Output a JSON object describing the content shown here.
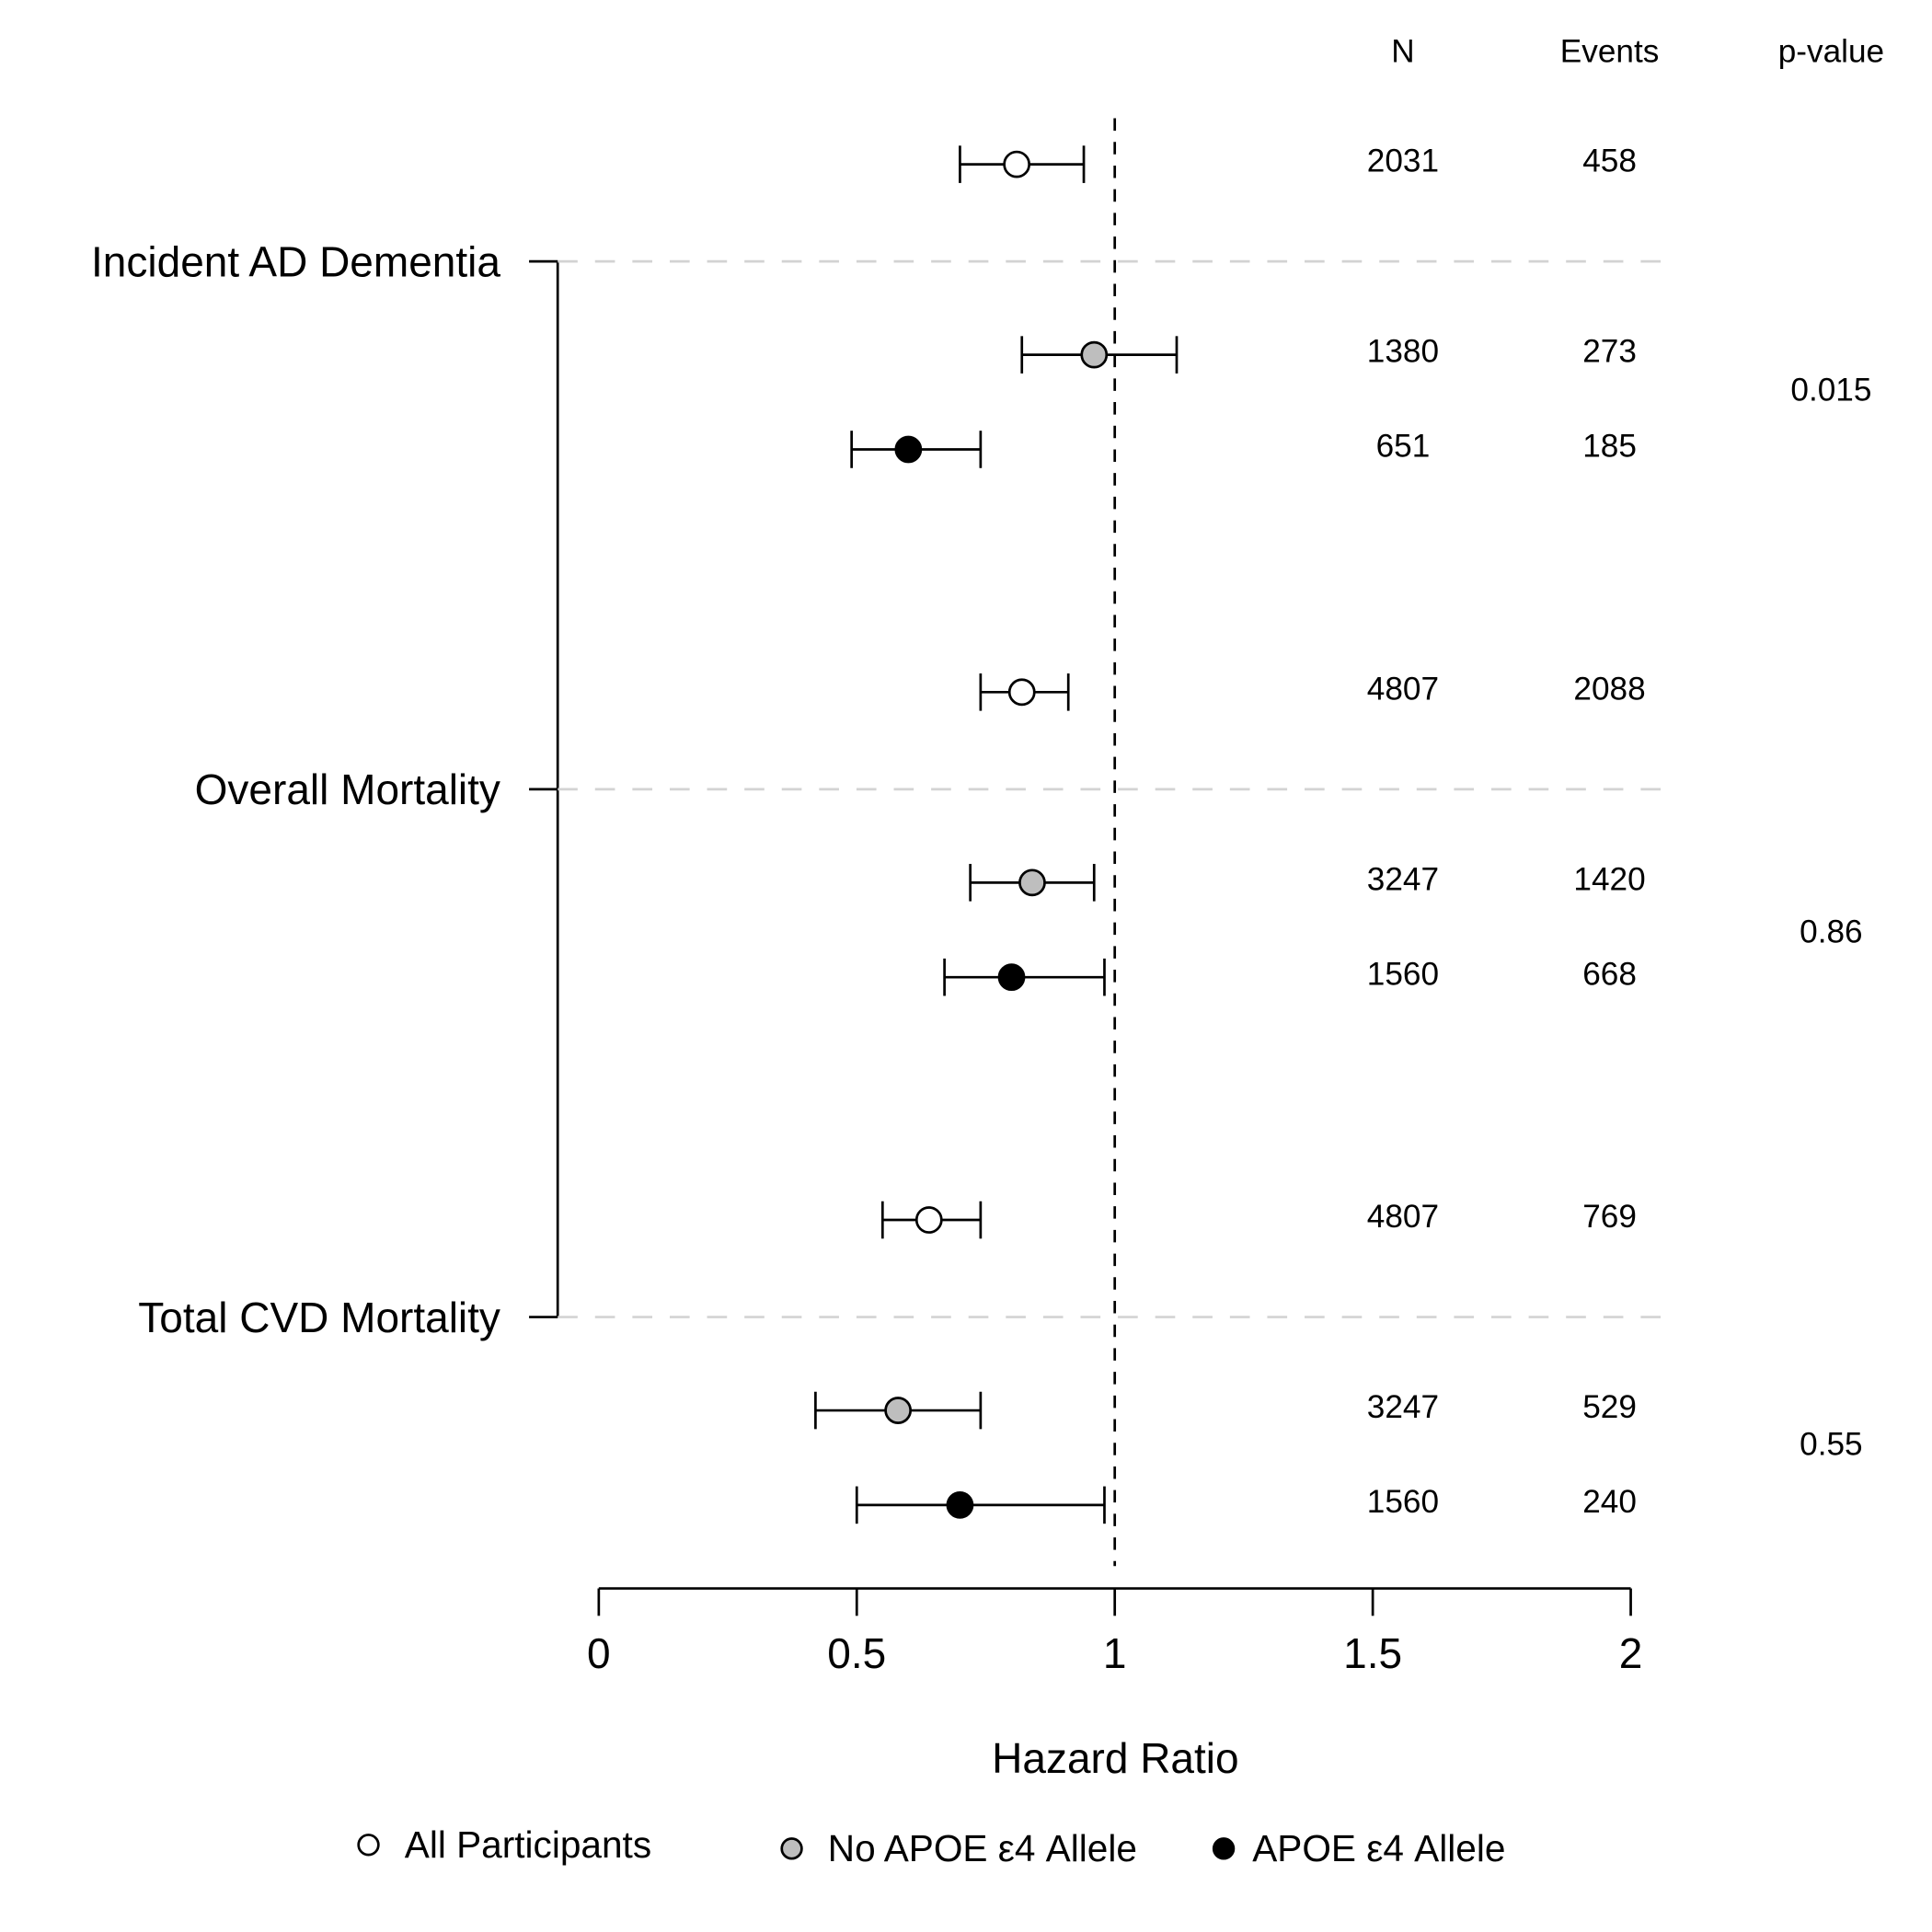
{
  "chart_data": {
    "type": "forest",
    "xlabel": "Hazard Ratio",
    "xlim": [
      0,
      2
    ],
    "xticks": [
      "0",
      "0.5",
      "1",
      "1.5",
      "2"
    ],
    "reference_line": 1,
    "column_headers": {
      "n": "N",
      "events": "Events",
      "p": "p-value"
    },
    "legend": [
      {
        "label": "All Participants",
        "fill": "#ffffff"
      },
      {
        "label": "No APOE ε4 Allele",
        "fill": "#bebebe"
      },
      {
        "label": "APOE ε4 Allele",
        "fill": "#000000"
      }
    ],
    "groups": [
      {
        "label": "Incident AD Dementia",
        "p": "0.015",
        "rows": [
          {
            "series": 0,
            "hr": 0.81,
            "lo": 0.7,
            "hi": 0.94,
            "n": "2031",
            "events": "458"
          },
          {
            "series": 1,
            "hr": 0.96,
            "lo": 0.82,
            "hi": 1.12,
            "n": "1380",
            "events": "273"
          },
          {
            "series": 2,
            "hr": 0.6,
            "lo": 0.49,
            "hi": 0.74,
            "n": "651",
            "events": "185"
          }
        ]
      },
      {
        "label": "Overall Mortality",
        "p": "0.86",
        "rows": [
          {
            "series": 0,
            "hr": 0.82,
            "lo": 0.74,
            "hi": 0.91,
            "n": "4807",
            "events": "2088"
          },
          {
            "series": 1,
            "hr": 0.84,
            "lo": 0.72,
            "hi": 0.96,
            "n": "3247",
            "events": "1420"
          },
          {
            "series": 2,
            "hr": 0.8,
            "lo": 0.67,
            "hi": 0.98,
            "n": "1560",
            "events": "668"
          }
        ]
      },
      {
        "label": "Total CVD Mortality",
        "p": "0.55",
        "rows": [
          {
            "series": 0,
            "hr": 0.64,
            "lo": 0.55,
            "hi": 0.74,
            "n": "4807",
            "events": "769"
          },
          {
            "series": 1,
            "hr": 0.58,
            "lo": 0.42,
            "hi": 0.74,
            "n": "3247",
            "events": "529"
          },
          {
            "series": 2,
            "hr": 0.7,
            "lo": 0.5,
            "hi": 0.98,
            "n": "1560",
            "events": "240"
          }
        ]
      }
    ]
  }
}
